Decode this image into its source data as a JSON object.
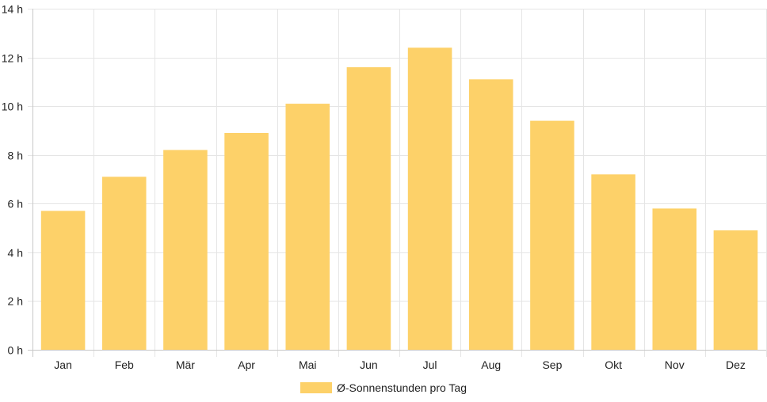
{
  "chart_data": {
    "type": "bar",
    "title": "",
    "xlabel": "",
    "ylabel": "",
    "ylim": [
      0,
      14
    ],
    "ytick_step": 2,
    "ytick_suffix": " h",
    "grid": true,
    "legend_position": "bottom",
    "categories": [
      "Jan",
      "Feb",
      "Mär",
      "Apr",
      "Mai",
      "Jun",
      "Jul",
      "Aug",
      "Sep",
      "Okt",
      "Nov",
      "Dez"
    ],
    "series": [
      {
        "name": "Ø-Sonnenstunden pro Tag",
        "color": "#FDD169",
        "values": [
          5.7,
          7.1,
          8.2,
          8.9,
          10.1,
          11.6,
          12.4,
          11.1,
          9.4,
          7.2,
          5.8,
          4.9
        ]
      }
    ]
  },
  "colors": {
    "grid": "#e5e5e5",
    "axis": "#c8c8c8",
    "bar": "#FDD169"
  }
}
